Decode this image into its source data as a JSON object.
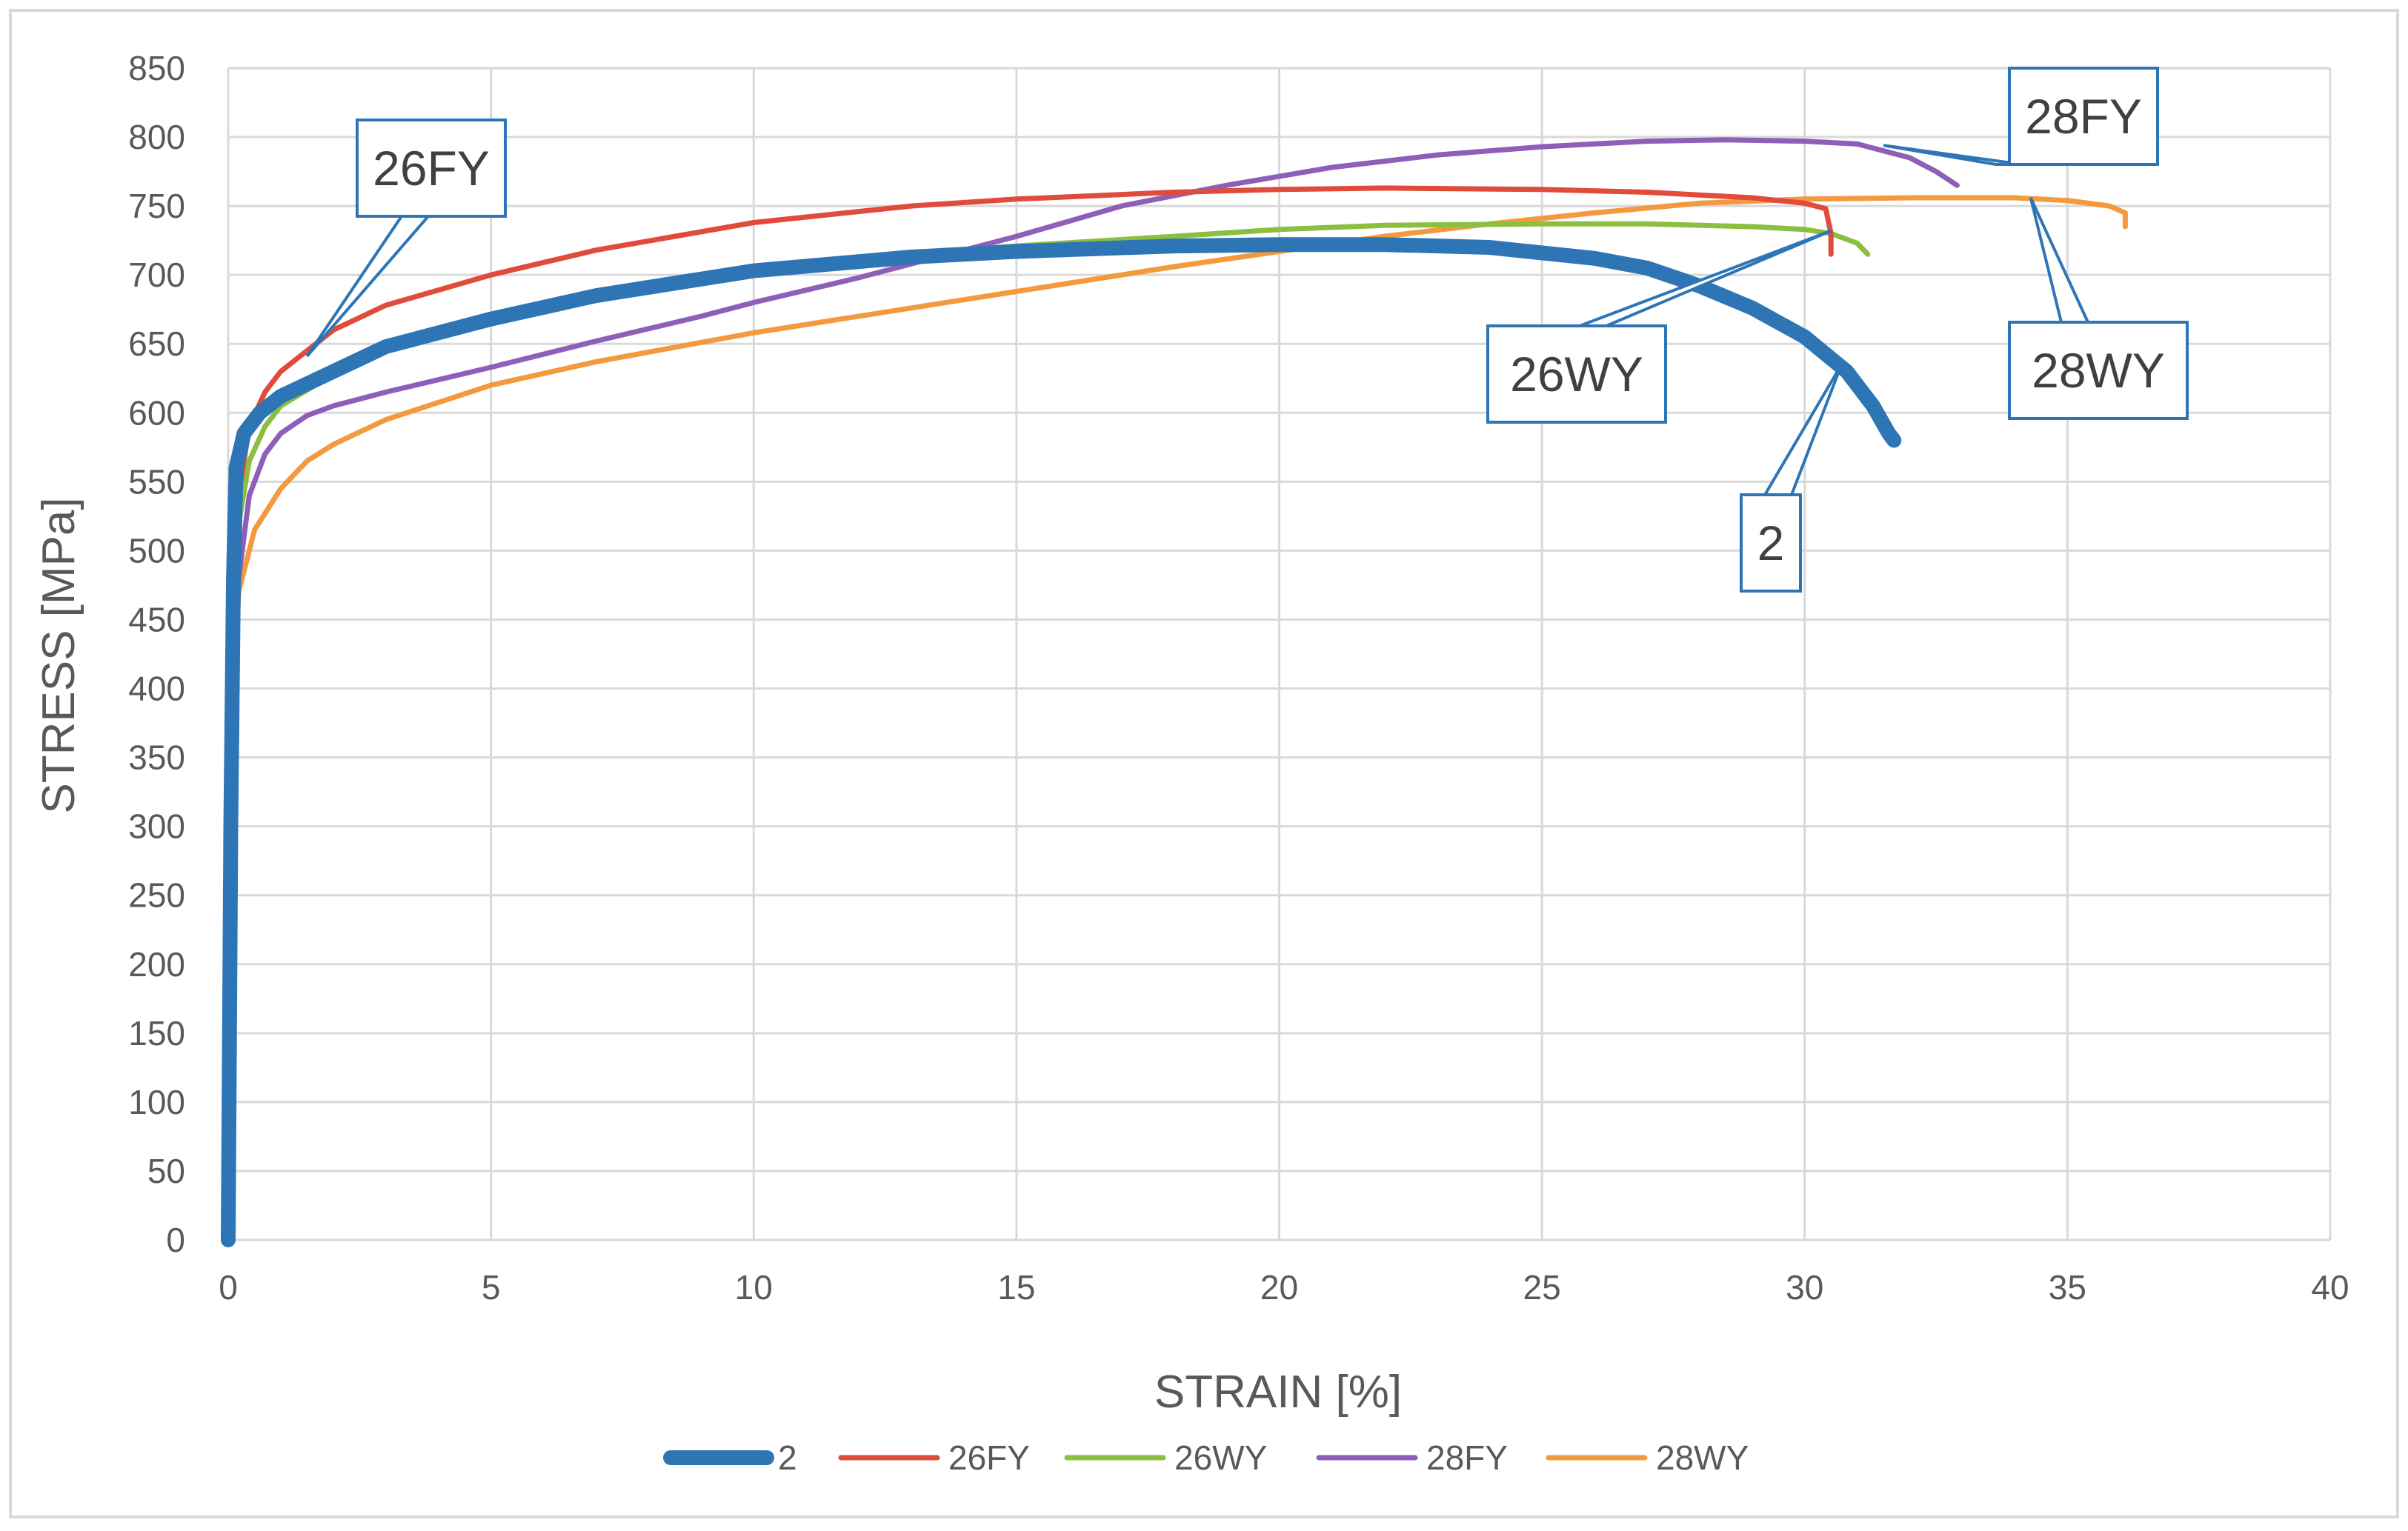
{
  "chart_data": {
    "type": "line",
    "xlabel": "STRAIN [%]",
    "ylabel": "STRESS [MPa]",
    "xlim": [
      0,
      40
    ],
    "ylim": [
      0,
      850
    ],
    "x_ticks": [
      0,
      5,
      10,
      15,
      20,
      25,
      30,
      35,
      40
    ],
    "y_ticks": [
      0,
      50,
      100,
      150,
      200,
      250,
      300,
      350,
      400,
      450,
      500,
      550,
      600,
      650,
      700,
      750,
      800,
      850
    ],
    "grid": true,
    "legend_position": "bottom",
    "series": [
      {
        "name": "2",
        "color": "#2e75b6",
        "points": [
          [
            0,
            0
          ],
          [
            0.05,
            300
          ],
          [
            0.1,
            480
          ],
          [
            0.15,
            560
          ],
          [
            0.3,
            585
          ],
          [
            0.6,
            600
          ],
          [
            1,
            612
          ],
          [
            2,
            630
          ],
          [
            3,
            648
          ],
          [
            5,
            668
          ],
          [
            7,
            685
          ],
          [
            10,
            703
          ],
          [
            13,
            713
          ],
          [
            15,
            717
          ],
          [
            18,
            721
          ],
          [
            20,
            722
          ],
          [
            22,
            722
          ],
          [
            24,
            720
          ],
          [
            26,
            712
          ],
          [
            27,
            705
          ],
          [
            28,
            692
          ],
          [
            29,
            676
          ],
          [
            30,
            655
          ],
          [
            30.8,
            630
          ],
          [
            31.3,
            605
          ],
          [
            31.6,
            585
          ],
          [
            31.7,
            580
          ]
        ]
      },
      {
        "name": "26FY",
        "color": "#e04b3b",
        "points": [
          [
            0,
            0
          ],
          [
            0.05,
            300
          ],
          [
            0.1,
            450
          ],
          [
            0.2,
            540
          ],
          [
            0.4,
            590
          ],
          [
            0.7,
            615
          ],
          [
            1,
            630
          ],
          [
            1.5,
            645
          ],
          [
            2,
            660
          ],
          [
            3,
            678
          ],
          [
            5,
            700
          ],
          [
            7,
            718
          ],
          [
            10,
            738
          ],
          [
            13,
            750
          ],
          [
            15,
            755
          ],
          [
            18,
            760
          ],
          [
            20,
            762
          ],
          [
            22,
            763
          ],
          [
            25,
            762
          ],
          [
            27,
            760
          ],
          [
            29,
            756
          ],
          [
            30,
            752
          ],
          [
            30.4,
            748
          ],
          [
            30.5,
            730
          ],
          [
            30.5,
            715
          ]
        ]
      },
      {
        "name": "26WY",
        "color": "#8cbf3f",
        "points": [
          [
            0,
            0
          ],
          [
            0.05,
            250
          ],
          [
            0.1,
            420
          ],
          [
            0.2,
            520
          ],
          [
            0.4,
            565
          ],
          [
            0.7,
            590
          ],
          [
            1,
            605
          ],
          [
            2,
            628
          ],
          [
            3,
            645
          ],
          [
            5,
            668
          ],
          [
            7,
            685
          ],
          [
            10,
            703
          ],
          [
            13,
            715
          ],
          [
            15,
            721
          ],
          [
            18,
            728
          ],
          [
            20,
            733
          ],
          [
            22,
            736
          ],
          [
            25,
            737
          ],
          [
            27,
            737
          ],
          [
            29,
            735
          ],
          [
            30,
            733
          ],
          [
            30.5,
            730
          ],
          [
            31,
            723
          ],
          [
            31.2,
            715
          ]
        ]
      },
      {
        "name": "28FY",
        "color": "#8e5fb8",
        "points": [
          [
            0,
            0
          ],
          [
            0.05,
            260
          ],
          [
            0.1,
            400
          ],
          [
            0.2,
            480
          ],
          [
            0.4,
            540
          ],
          [
            0.7,
            570
          ],
          [
            1,
            585
          ],
          [
            1.5,
            598
          ],
          [
            2,
            605
          ],
          [
            3,
            615
          ],
          [
            5,
            633
          ],
          [
            7,
            652
          ],
          [
            9,
            670
          ],
          [
            10,
            680
          ],
          [
            12,
            698
          ],
          [
            14,
            718
          ],
          [
            15,
            728
          ],
          [
            17,
            750
          ],
          [
            19,
            765
          ],
          [
            21,
            778
          ],
          [
            23,
            787
          ],
          [
            25,
            793
          ],
          [
            27,
            797
          ],
          [
            28.5,
            798
          ],
          [
            30,
            797
          ],
          [
            31,
            795
          ],
          [
            32,
            785
          ],
          [
            32.5,
            775
          ],
          [
            32.9,
            765
          ]
        ]
      },
      {
        "name": "28WY",
        "color": "#f39a3e",
        "points": [
          [
            0,
            0
          ],
          [
            0.05,
            270
          ],
          [
            0.1,
            400
          ],
          [
            0.2,
            470
          ],
          [
            0.5,
            515
          ],
          [
            1,
            545
          ],
          [
            1.5,
            565
          ],
          [
            2,
            577
          ],
          [
            3,
            595
          ],
          [
            5,
            620
          ],
          [
            7,
            637
          ],
          [
            10,
            658
          ],
          [
            13,
            676
          ],
          [
            15,
            688
          ],
          [
            18,
            706
          ],
          [
            20,
            717
          ],
          [
            22,
            728
          ],
          [
            24,
            737
          ],
          [
            26,
            745
          ],
          [
            28,
            752
          ],
          [
            30,
            755
          ],
          [
            32,
            756
          ],
          [
            34,
            756
          ],
          [
            35,
            754
          ],
          [
            35.8,
            750
          ],
          [
            36.1,
            745
          ],
          [
            36.1,
            735
          ]
        ]
      }
    ],
    "annotations": [
      {
        "label": "26FY",
        "target": [
          1.5,
          641
        ]
      },
      {
        "label": "28FY",
        "target": [
          31.5,
          794
        ]
      },
      {
        "label": "26WY",
        "target": [
          30.5,
          732
        ]
      },
      {
        "label": "28WY",
        "target": [
          34.3,
          756
        ]
      },
      {
        "label": "2",
        "target": [
          30.7,
          635
        ]
      }
    ]
  }
}
